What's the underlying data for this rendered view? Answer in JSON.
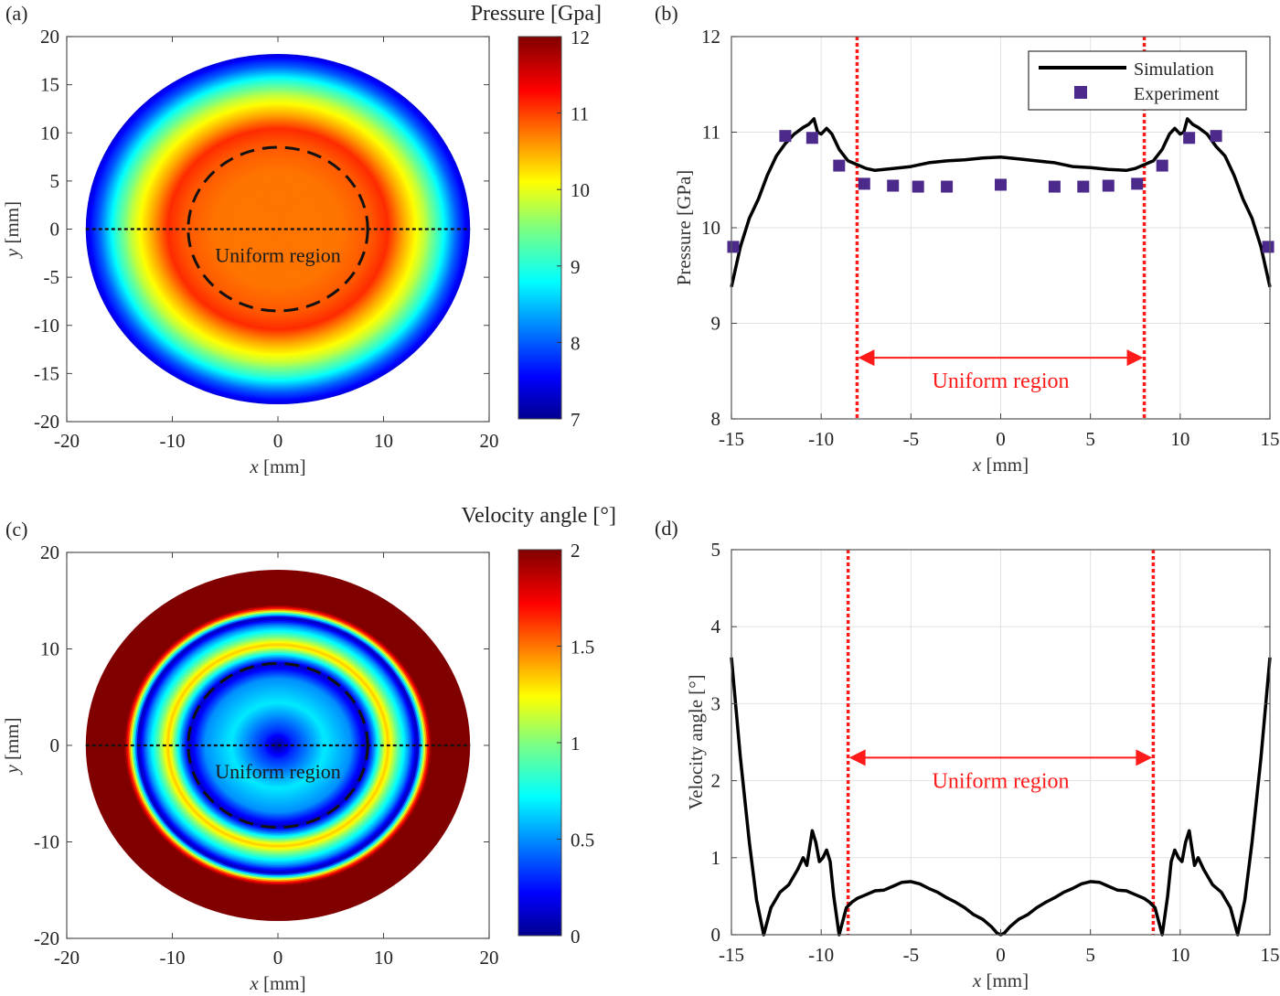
{
  "chart_data": [
    {
      "panel": "(a)",
      "type": "heatmap",
      "title": "Pressure [Gpa]",
      "xlabel": "x [mm]",
      "ylabel": "y [mm]",
      "xlim": [
        -20,
        20
      ],
      "ylim": [
        -20,
        20
      ],
      "xticks": [
        "-20",
        "-10",
        "0",
        "10",
        "20"
      ],
      "yticks": [
        "20",
        "15",
        "10",
        "5",
        "0",
        "-5",
        "-10",
        "-15",
        "-20"
      ],
      "colorbar": {
        "label": "Pressure [Gpa]",
        "range": [
          7,
          12
        ],
        "ticks": [
          "12",
          "11",
          "10",
          "9",
          "8",
          "7"
        ],
        "colormap": "jet"
      },
      "domain_radius_mm": 18.2,
      "annotation": "Uniform region",
      "uniform_region_radius_mm": 8.5,
      "profile": {
        "r": [
          0,
          6,
          9,
          10.5,
          12,
          14,
          15.5,
          17,
          18.2
        ],
        "value": [
          10.75,
          10.75,
          10.9,
          11.1,
          10.5,
          9.8,
          9.0,
          8.0,
          7.4
        ]
      }
    },
    {
      "panel": "(b)",
      "type": "line",
      "xlabel": "x [mm]",
      "ylabel": "Pressure [GPa]",
      "xlim": [
        -15,
        15
      ],
      "ylim": [
        8,
        12
      ],
      "grid": true,
      "xticks": [
        "-15",
        "-10",
        "-5",
        "0",
        "5",
        "10",
        "15"
      ],
      "yticks": [
        "12",
        "11",
        "10",
        "9",
        "8"
      ],
      "legend": {
        "placement": "top-right",
        "entries": [
          "Simulation",
          "Experiment"
        ]
      },
      "annotation": "Uniform region",
      "uniform_region_x": [
        -8,
        8
      ],
      "series": [
        {
          "name": "Simulation",
          "style": "line",
          "color": "#000000",
          "x": [
            -15,
            -14.5,
            -14,
            -13.5,
            -13,
            -12.5,
            -12,
            -11.5,
            -11,
            -10.7,
            -10.4,
            -10.2,
            -10,
            -9.7,
            -9.4,
            -9,
            -8.5,
            -8,
            -7.5,
            -7,
            -6,
            -5,
            -4,
            -3,
            -2,
            -1,
            0,
            1,
            2,
            3,
            4,
            5,
            6,
            7,
            7.5,
            8,
            8.5,
            9,
            9.4,
            9.7,
            10,
            10.2,
            10.4,
            10.7,
            11,
            11.5,
            12,
            12.5,
            13,
            13.5,
            14,
            14.5,
            15
          ],
          "y": [
            9.38,
            9.8,
            10.1,
            10.3,
            10.55,
            10.75,
            10.88,
            10.98,
            11.05,
            11.08,
            11.14,
            11.0,
            10.98,
            11.04,
            10.98,
            10.82,
            10.7,
            10.66,
            10.62,
            10.6,
            10.62,
            10.64,
            10.68,
            10.7,
            10.71,
            10.73,
            10.74,
            10.72,
            10.7,
            10.68,
            10.64,
            10.63,
            10.61,
            10.6,
            10.62,
            10.66,
            10.7,
            10.82,
            10.98,
            11.04,
            10.98,
            11.0,
            11.14,
            11.08,
            11.05,
            10.98,
            10.85,
            10.75,
            10.55,
            10.3,
            10.1,
            9.8,
            9.38
          ]
        },
        {
          "name": "Experiment",
          "style": "square-marker",
          "color": "#4b2a8c",
          "x": [
            -14.9,
            -12,
            -10.5,
            -9,
            -7.6,
            -6,
            -4.6,
            -3,
            0,
            3,
            4.6,
            6,
            7.6,
            9,
            10.5,
            12,
            14.9
          ],
          "y": [
            9.8,
            10.96,
            10.94,
            10.65,
            10.46,
            10.44,
            10.43,
            10.43,
            10.45,
            10.43,
            10.43,
            10.44,
            10.46,
            10.65,
            10.94,
            10.96,
            9.8
          ]
        }
      ]
    },
    {
      "panel": "(c)",
      "type": "heatmap",
      "title": "Velocity angle [°]",
      "xlabel": "x [mm]",
      "ylabel": "y [mm]",
      "xlim": [
        -20,
        20
      ],
      "ylim": [
        -20,
        20
      ],
      "xticks": [
        "-20",
        "-10",
        "0",
        "10",
        "20"
      ],
      "yticks": [
        "20",
        "10",
        "0",
        "-10",
        "-20"
      ],
      "colorbar": {
        "label": "Velocity angle [°]",
        "range": [
          0,
          2
        ],
        "ticks": [
          "2",
          "1.5",
          "1",
          "0.5",
          "0"
        ],
        "colormap": "jet"
      },
      "domain_radius_mm": 18.2,
      "annotation": "Uniform region",
      "uniform_region_radius_mm": 8.5,
      "profile": {
        "r": [
          0,
          1.5,
          4.5,
          7,
          8.5,
          9.2,
          10.2,
          10.5,
          11.5,
          12.5,
          13.3,
          14.2,
          14.6,
          18.2
        ],
        "value": [
          0,
          0.3,
          0.68,
          0.5,
          0.1,
          0.5,
          1.2,
          1.35,
          0.9,
          0.5,
          0.05,
          1.6,
          2.0,
          2.0
        ]
      }
    },
    {
      "panel": "(d)",
      "type": "line",
      "xlabel": "x [mm]",
      "ylabel": "Velocity angle [°]",
      "xlim": [
        -15,
        15
      ],
      "ylim": [
        0,
        5
      ],
      "grid": true,
      "xticks": [
        "-15",
        "-10",
        "-5",
        "0",
        "5",
        "10",
        "15"
      ],
      "yticks": [
        "5",
        "4",
        "3",
        "2",
        "1",
        "0"
      ],
      "annotation": "Uniform region",
      "uniform_region_x": [
        -8.5,
        8.5
      ],
      "series": [
        {
          "name": "Velocity angle",
          "style": "line",
          "color": "#000000",
          "x": [
            -15,
            -14.5,
            -14,
            -13.6,
            -13.2,
            -12.8,
            -12.3,
            -11.8,
            -11.3,
            -11,
            -10.8,
            -10.5,
            -10.3,
            -10.1,
            -9.9,
            -9.7,
            -9.5,
            -9.3,
            -9.0,
            -8.6,
            -8.3,
            -8,
            -7.5,
            -7,
            -6.5,
            -6,
            -5.5,
            -5,
            -4.5,
            -4,
            -3.5,
            -3,
            -2.5,
            -2,
            -1.5,
            -1,
            -0.5,
            -0.2,
            0,
            0.2,
            0.5,
            1,
            1.5,
            2,
            2.5,
            3,
            3.5,
            4,
            4.5,
            5,
            5.5,
            6,
            6.5,
            7,
            7.5,
            8,
            8.3,
            8.6,
            9.0,
            9.3,
            9.5,
            9.7,
            9.9,
            10.1,
            10.3,
            10.5,
            10.8,
            11,
            11.3,
            11.8,
            12.3,
            12.8,
            13.2,
            13.6,
            14,
            14.5,
            15
          ],
          "y": [
            3.6,
            2.3,
            1.2,
            0.45,
            0.0,
            0.35,
            0.55,
            0.65,
            0.85,
            1.0,
            0.9,
            1.35,
            1.2,
            0.95,
            1.0,
            1.1,
            0.95,
            0.5,
            0.0,
            0.35,
            0.42,
            0.47,
            0.52,
            0.57,
            0.58,
            0.63,
            0.68,
            0.69,
            0.66,
            0.6,
            0.55,
            0.48,
            0.42,
            0.35,
            0.26,
            0.2,
            0.1,
            0.02,
            0.0,
            0.02,
            0.1,
            0.2,
            0.26,
            0.35,
            0.42,
            0.48,
            0.55,
            0.6,
            0.66,
            0.69,
            0.68,
            0.63,
            0.58,
            0.57,
            0.52,
            0.47,
            0.42,
            0.35,
            0.0,
            0.5,
            0.95,
            1.1,
            1.0,
            0.95,
            1.2,
            1.35,
            0.9,
            1.0,
            0.85,
            0.65,
            0.55,
            0.35,
            0.0,
            0.45,
            1.2,
            2.3,
            3.6
          ]
        }
      ]
    }
  ],
  "labels": {
    "a": "(a)",
    "b": "(b)",
    "c": "(c)",
    "d": "(d)",
    "pressure_cb_title": "Pressure [Gpa]",
    "velocity_cb_title": "Velocity angle [°]",
    "uniform": "Uniform region",
    "x_label_mm": "[mm]",
    "x_var": "x",
    "y_var": "y",
    "pressure_ylabel": "Pressure [GPa]",
    "velocity_ylabel": "Velocity angle [°]",
    "legend_sim": "Simulation",
    "legend_exp": "Experiment"
  }
}
